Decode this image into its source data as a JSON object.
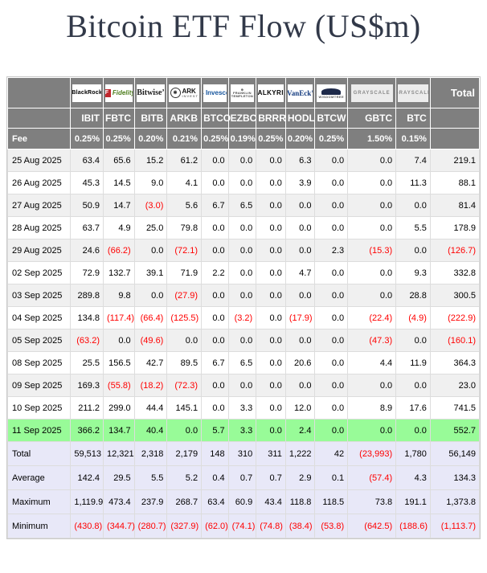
{
  "chart_data": {
    "type": "table",
    "title": "Bitcoin ETF Flow (US$m)",
    "fee_label": "Fee",
    "total_label": "Total",
    "columns": [
      "",
      "IBIT",
      "FBTC",
      "BITB",
      "ARKB",
      "BTCO",
      "EZBC",
      "BRRR",
      "HODL",
      "BTCW",
      "GBTC",
      "BTC",
      "Total"
    ],
    "providers": [
      {
        "name": "BlackRock",
        "ticker": "IBIT",
        "fee": "0.25%",
        "logo_style": "blackrock",
        "logo_text": "BlackRock"
      },
      {
        "name": "Fidelity",
        "ticker": "FBTC",
        "fee": "0.25%",
        "logo_style": "fidelity",
        "logo_text": "Fidelity"
      },
      {
        "name": "Bitwise",
        "ticker": "BITB",
        "fee": "0.20%",
        "logo_style": "bitwise",
        "logo_text": "Bitwise"
      },
      {
        "name": "ARK Invest",
        "ticker": "ARKB",
        "fee": "0.21%",
        "logo_style": "ark",
        "logo_text": "ARK",
        "logo_sub": "INVEST"
      },
      {
        "name": "Invesco",
        "ticker": "BTCO",
        "fee": "0.25%",
        "logo_style": "invesco",
        "logo_text": "Invesco"
      },
      {
        "name": "Franklin Templeton",
        "ticker": "EZBC",
        "fee": "0.19%",
        "logo_style": "franklin",
        "logo_text": "FRANKLIN",
        "logo_sub": "TEMPLETON"
      },
      {
        "name": "Valkyrie",
        "ticker": "BRRR",
        "fee": "0.25%",
        "logo_style": "valkyrie",
        "logo_text": "VALKYRIE"
      },
      {
        "name": "VanEck",
        "ticker": "HODL",
        "fee": "0.20%",
        "logo_style": "vaneck",
        "logo_text": "VanEck"
      },
      {
        "name": "WisdomTree",
        "ticker": "BTCW",
        "fee": "0.25%",
        "logo_style": "wisdomtree",
        "logo_text": "WISDOMTREE"
      },
      {
        "name": "Grayscale",
        "ticker": "GBTC",
        "fee": "1.50%",
        "logo_style": "grayscale",
        "logo_text": "GRAYSCALE"
      },
      {
        "name": "Grayscale",
        "ticker": "BTC",
        "fee": "0.15%",
        "logo_style": "grayscale",
        "logo_text": "GRAYSCALE"
      }
    ],
    "rows": [
      {
        "date": "25 Aug 2025",
        "values": [
          "63.4",
          "65.6",
          "15.2",
          "61.2",
          "0.0",
          "0.0",
          "0.0",
          "6.3",
          "0.0",
          "0.0",
          "7.4",
          "219.1"
        ],
        "highlight": false
      },
      {
        "date": "26 Aug 2025",
        "values": [
          "45.3",
          "14.5",
          "9.0",
          "4.1",
          "0.0",
          "0.0",
          "0.0",
          "3.9",
          "0.0",
          "0.0",
          "11.3",
          "88.1"
        ],
        "highlight": false
      },
      {
        "date": "27 Aug 2025",
        "values": [
          "50.9",
          "14.7",
          "(3.0)",
          "5.6",
          "6.7",
          "6.5",
          "0.0",
          "0.0",
          "0.0",
          "0.0",
          "0.0",
          "81.4"
        ],
        "highlight": false
      },
      {
        "date": "28 Aug 2025",
        "values": [
          "63.7",
          "4.9",
          "25.0",
          "79.8",
          "0.0",
          "0.0",
          "0.0",
          "0.0",
          "0.0",
          "0.0",
          "5.5",
          "178.9"
        ],
        "highlight": false
      },
      {
        "date": "29 Aug 2025",
        "values": [
          "24.6",
          "(66.2)",
          "0.0",
          "(72.1)",
          "0.0",
          "0.0",
          "0.0",
          "0.0",
          "2.3",
          "(15.3)",
          "0.0",
          "(126.7)"
        ],
        "highlight": false
      },
      {
        "date": "02 Sep 2025",
        "values": [
          "72.9",
          "132.7",
          "39.1",
          "71.9",
          "2.2",
          "0.0",
          "0.0",
          "4.7",
          "0.0",
          "0.0",
          "9.3",
          "332.8"
        ],
        "highlight": false
      },
      {
        "date": "03 Sep 2025",
        "values": [
          "289.8",
          "9.8",
          "0.0",
          "(27.9)",
          "0.0",
          "0.0",
          "0.0",
          "0.0",
          "0.0",
          "0.0",
          "28.8",
          "300.5"
        ],
        "highlight": false
      },
      {
        "date": "04 Sep 2025",
        "values": [
          "134.8",
          "(117.4)",
          "(66.4)",
          "(125.5)",
          "0.0",
          "(3.2)",
          "0.0",
          "(17.9)",
          "0.0",
          "(22.4)",
          "(4.9)",
          "(222.9)"
        ],
        "highlight": false
      },
      {
        "date": "05 Sep 2025",
        "values": [
          "(63.2)",
          "0.0",
          "(49.6)",
          "0.0",
          "0.0",
          "0.0",
          "0.0",
          "0.0",
          "0.0",
          "(47.3)",
          "0.0",
          "(160.1)"
        ],
        "highlight": false
      },
      {
        "date": "08 Sep 2025",
        "values": [
          "25.5",
          "156.5",
          "42.7",
          "89.5",
          "6.7",
          "6.5",
          "0.0",
          "20.6",
          "0.0",
          "4.4",
          "11.9",
          "364.3"
        ],
        "highlight": false
      },
      {
        "date": "09 Sep 2025",
        "values": [
          "169.3",
          "(55.8)",
          "(18.2)",
          "(72.3)",
          "0.0",
          "0.0",
          "0.0",
          "0.0",
          "0.0",
          "0.0",
          "0.0",
          "23.0"
        ],
        "highlight": false
      },
      {
        "date": "10 Sep 2025",
        "values": [
          "211.2",
          "299.0",
          "44.4",
          "145.1",
          "0.0",
          "3.3",
          "0.0",
          "12.0",
          "0.0",
          "8.9",
          "17.6",
          "741.5"
        ],
        "highlight": false
      },
      {
        "date": "11 Sep 2025",
        "values": [
          "366.2",
          "134.7",
          "40.4",
          "0.0",
          "5.7",
          "3.3",
          "0.0",
          "2.4",
          "0.0",
          "0.0",
          "0.0",
          "552.7"
        ],
        "highlight": true
      }
    ],
    "summary": [
      {
        "label": "Total",
        "values": [
          "59,513",
          "12,321",
          "2,318",
          "2,179",
          "148",
          "310",
          "311",
          "1,222",
          "42",
          "(23,993)",
          "1,780",
          "56,149"
        ]
      },
      {
        "label": "Average",
        "values": [
          "142.4",
          "29.5",
          "5.5",
          "5.2",
          "0.4",
          "0.7",
          "0.7",
          "2.9",
          "0.1",
          "(57.4)",
          "4.3",
          "134.3"
        ]
      },
      {
        "label": "Maximum",
        "values": [
          "1,119.9",
          "473.4",
          "237.9",
          "268.7",
          "63.4",
          "60.9",
          "43.4",
          "118.8",
          "118.5",
          "73.8",
          "191.1",
          "1,373.8"
        ]
      },
      {
        "label": "Minimum",
        "values": [
          "(430.8)",
          "(344.7)",
          "(280.7)",
          "(327.9)",
          "(62.0)",
          "(74.1)",
          "(74.8)",
          "(38.4)",
          "(53.8)",
          "(642.5)",
          "(188.6)",
          "(1,113.7)"
        ]
      }
    ],
    "layout": {
      "header_bg": "#7f7f7f",
      "stripe_bg": "#f0f0f0",
      "highlight_bg": "#98FB98",
      "summary_bg": "#E8E8F8",
      "negative_color": "#ff0000",
      "title_color": "#323949"
    }
  }
}
